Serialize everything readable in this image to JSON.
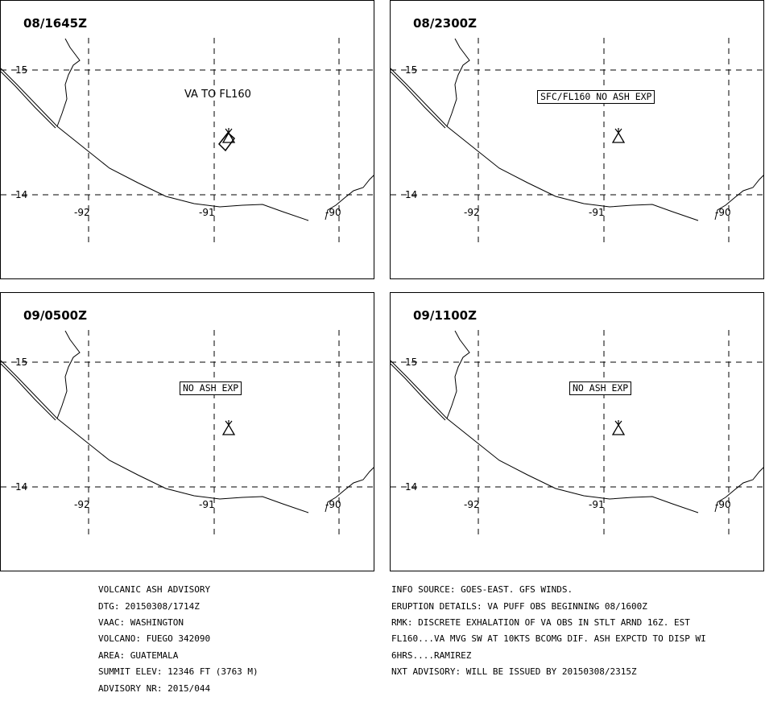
{
  "panels": [
    {
      "time": "08/1645Z",
      "annotation": "VA TO FL160",
      "boxed": false,
      "ash_polygon": true
    },
    {
      "time": "08/2300Z",
      "annotation": "SFC/FL160 NO ASH EXP",
      "boxed": true,
      "ash_polygon": false
    },
    {
      "time": "09/0500Z",
      "annotation": "NO ASH EXP",
      "boxed": true,
      "ash_polygon": false
    },
    {
      "time": "09/1100Z",
      "annotation": "NO ASH EXP",
      "boxed": true,
      "ash_polygon": false
    }
  ],
  "grid": {
    "lat_labels": [
      "15",
      "14"
    ],
    "lon_labels": [
      "-92",
      "-91",
      "-90"
    ]
  },
  "advisory": {
    "title": "VOLCANIC ASH ADVISORY",
    "dtg": "DTG: 20150308/1714Z",
    "vaac": "VAAC: WASHINGTON",
    "volcano": "VOLCANO: FUEGO 342090",
    "area": "AREA: GUATEMALA",
    "summit": "SUMMIT ELEV: 12346 FT (3763 M)",
    "advisory_nr": "ADVISORY NR: 2015/044"
  },
  "info": {
    "info_source": "INFO SOURCE: GOES-EAST. GFS WINDS.",
    "eruption": "ERUPTION DETAILS: VA PUFF OBS BEGINNING 08/1600Z",
    "rmk1": "RMK: DISCRETE EXHALATION OF VA OBS IN STLT ARND 16Z. EST",
    "rmk2": "FL160...VA MVG SW AT 10KTS BCOMG DIF. ASH EXPCTD TO DISP WI",
    "rmk3": "6HRS....RAMIREZ",
    "nxt": "NXT ADVISORY: WILL BE ISSUED BY 20150308/2315Z"
  },
  "colors": {
    "line": "#000000",
    "background": "#ffffff"
  }
}
